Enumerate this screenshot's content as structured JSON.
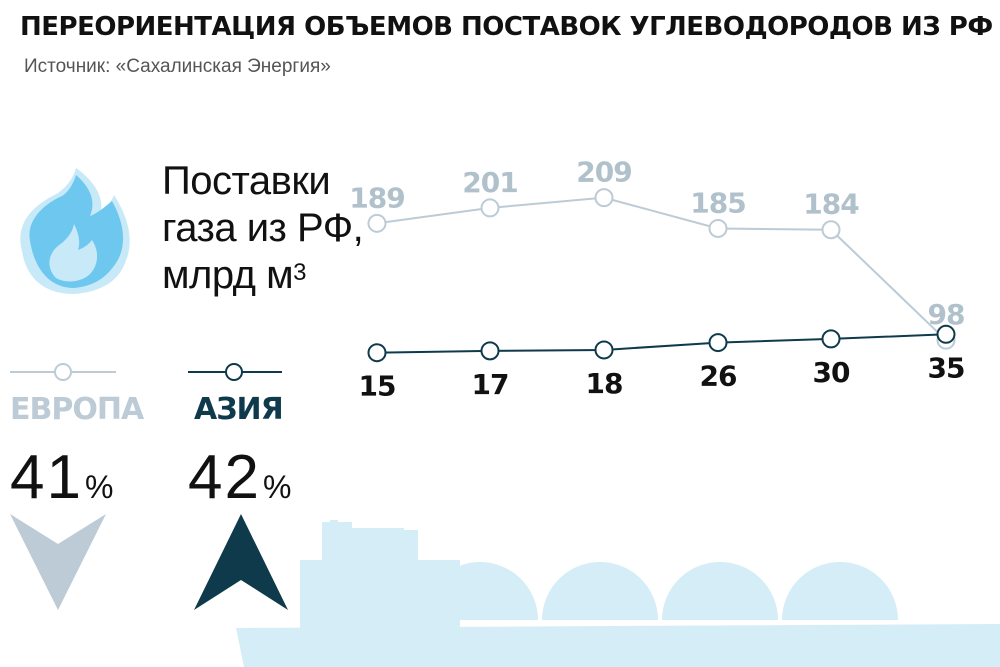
{
  "title": "ПЕРЕОРИЕНТАЦИЯ ОБЪЕМОВ ПОСТАВОК УГЛЕВОДОРОДОВ ИЗ РФ",
  "subtitle": "Источник: «Сахалинская Энергия»",
  "chart_label": {
    "line1": "Поставки",
    "line2": "газа из РФ,",
    "line3": "млрд м",
    "sup": "3"
  },
  "legend": {
    "europe": {
      "name": "ЕВРОПА",
      "share": "41",
      "sign": "%",
      "trend": "down"
    },
    "asia": {
      "name": "АЗИЯ",
      "share": "42",
      "sign": "%",
      "trend": "up"
    }
  },
  "colors": {
    "europe": "#bccbd6",
    "asia": "#0e3a4c",
    "flame_light": "#c8e9f7",
    "flame_dark": "#6ec7ee",
    "ship": "#d4edf7",
    "arrow_down": "#bccbd6",
    "arrow_up": "#0e3a4c"
  },
  "icons": [
    "flame-icon",
    "lng-tanker-icon",
    "arrow-down-icon",
    "arrow-up-icon"
  ],
  "chart_data": {
    "type": "line",
    "title": "",
    "ylabel": "Поставки газа из РФ, млрд м3",
    "series": [
      {
        "name": "ЕВРОПА",
        "values": [
          189,
          201,
          209,
          185,
          184,
          98
        ]
      },
      {
        "name": "АЗИЯ",
        "values": [
          15,
          17,
          18,
          26,
          30,
          35
        ]
      }
    ]
  }
}
